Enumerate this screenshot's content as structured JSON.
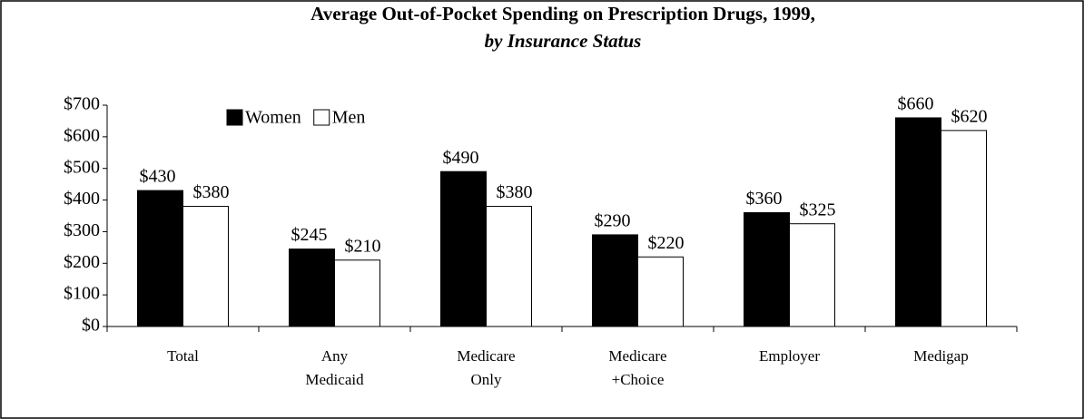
{
  "chart_data": {
    "type": "bar",
    "title": "Average Out-of-Pocket Spending on Prescription Drugs, 1999,",
    "subtitle": "by Insurance Status",
    "categories": [
      "Total",
      "Any Medicaid",
      "Medicare Only",
      "Medicare +Choice",
      "Employer",
      "Medigap"
    ],
    "series": [
      {
        "name": "Women",
        "color": "#000000",
        "values": [
          430,
          245,
          490,
          290,
          360,
          660
        ],
        "value_labels": [
          "$430",
          "$245",
          "$490",
          "$290",
          "$360",
          "$660"
        ]
      },
      {
        "name": "Men",
        "color": "#ffffff",
        "values": [
          380,
          210,
          380,
          220,
          325,
          620
        ],
        "value_labels": [
          "$380",
          "$210",
          "$380",
          "$220",
          "$325",
          "$620"
        ]
      }
    ],
    "ylim": [
      0,
      700
    ],
    "yticks": [
      {
        "value": 0,
        "label": "$0"
      },
      {
        "value": 100,
        "label": "$100"
      },
      {
        "value": 200,
        "label": "$200"
      },
      {
        "value": 300,
        "label": "$300"
      },
      {
        "value": 400,
        "label": "$400"
      },
      {
        "value": 500,
        "label": "$500"
      },
      {
        "value": 600,
        "label": "$600"
      },
      {
        "value": 700,
        "label": "$700"
      }
    ],
    "grid": false
  }
}
